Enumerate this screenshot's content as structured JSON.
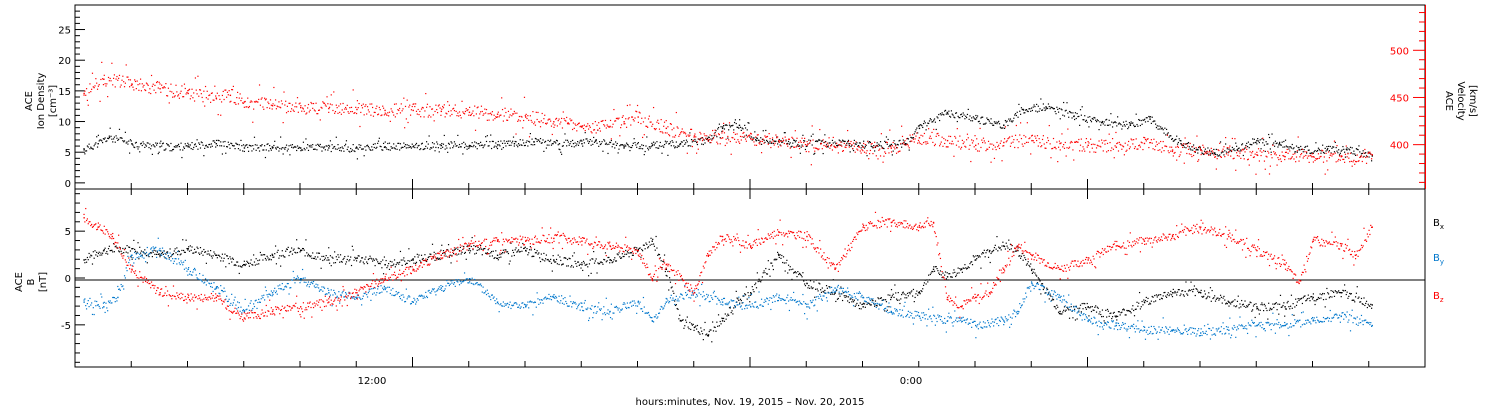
{
  "footer_label": "hours:minutes, Nov. 19, 2015 – Nov. 20, 2015",
  "x_ticks": [
    "12:00",
    "0:00"
  ],
  "colors": {
    "black": "#000000",
    "red": "#ff0000",
    "blue": "#0077cc"
  },
  "chart_data": [
    {
      "type": "scatter",
      "panel": "top",
      "ylabel_left": [
        "ACE",
        "Ion Density",
        "[cm⁻³]"
      ],
      "ylabel_right": [
        "ACE",
        "Velocity",
        "[km/s]"
      ],
      "y_ticks_left": [
        "0",
        "5",
        "10",
        "15",
        "20",
        "25"
      ],
      "y_ticks_right": [
        "400",
        "450",
        "500"
      ],
      "ylim_left": [
        -1,
        29
      ],
      "ylim_right": [
        353,
        548
      ],
      "xlim_hours": [
        0,
        48
      ],
      "grid": false,
      "series": [
        {
          "axis": "left",
          "color": "#000000",
          "points": [
            [
              0.3,
              5.5
            ],
            [
              0.8,
              6.5
            ],
            [
              1.2,
              7.5
            ],
            [
              2,
              6.5
            ],
            [
              3,
              6.0
            ],
            [
              4,
              6.0
            ],
            [
              5,
              6.5
            ],
            [
              6,
              5.8
            ],
            [
              7,
              5.8
            ],
            [
              8,
              5.8
            ],
            [
              9,
              5.8
            ],
            [
              10,
              5.8
            ],
            [
              11,
              6.0
            ],
            [
              12,
              6.0
            ],
            [
              13,
              6.2
            ],
            [
              14,
              6.2
            ],
            [
              15,
              6.3
            ],
            [
              15.6,
              6.5
            ],
            [
              16.3,
              6.8
            ],
            [
              17.2,
              6.5
            ],
            [
              18,
              6.5
            ],
            [
              18.5,
              7.0
            ],
            [
              19.5,
              6.0
            ],
            [
              20.5,
              6.2
            ],
            [
              21.5,
              6.5
            ],
            [
              22.5,
              7.0
            ],
            [
              23,
              9.0
            ],
            [
              23.6,
              9.5
            ],
            [
              24.2,
              7.0
            ],
            [
              25.3,
              6.5
            ],
            [
              26.5,
              6.5
            ],
            [
              27.5,
              6.5
            ],
            [
              28.5,
              6.2
            ],
            [
              29.5,
              6.5
            ],
            [
              30,
              9.0
            ],
            [
              31,
              11.5
            ],
            [
              32,
              10.5
            ],
            [
              33,
              9.5
            ],
            [
              33.7,
              12.0
            ],
            [
              34.5,
              12.5
            ],
            [
              35.5,
              11.0
            ],
            [
              36.5,
              10.0
            ],
            [
              37.5,
              9.5
            ],
            [
              38.2,
              10.5
            ],
            [
              39.3,
              6.5
            ],
            [
              39.9,
              5.5
            ],
            [
              40.5,
              5.0
            ],
            [
              41.3,
              5.5
            ],
            [
              42,
              7.0
            ],
            [
              42.8,
              6.5
            ],
            [
              43.5,
              5.5
            ],
            [
              44.5,
              5.5
            ],
            [
              45.2,
              5.5
            ],
            [
              46.1,
              4.5
            ]
          ]
        },
        {
          "axis": "right",
          "color": "#ff0000",
          "points": [
            [
              0.3,
              455
            ],
            [
              1,
              470
            ],
            [
              2,
              465
            ],
            [
              3,
              460
            ],
            [
              4,
              455
            ],
            [
              5,
              450
            ],
            [
              5.5,
              453
            ],
            [
              6,
              446
            ],
            [
              7,
              442
            ],
            [
              8,
              440
            ],
            [
              9,
              439
            ],
            [
              10,
              438
            ],
            [
              11,
              437
            ],
            [
              12,
              437
            ],
            [
              13,
              436
            ],
            [
              14,
              435
            ],
            [
              15,
              433
            ],
            [
              16,
              430
            ],
            [
              17,
              425
            ],
            [
              17.5,
              423
            ],
            [
              18,
              420
            ],
            [
              19,
              420
            ],
            [
              19.5,
              425
            ],
            [
              20,
              430
            ],
            [
              21,
              418
            ],
            [
              22,
              410
            ],
            [
              23,
              408
            ],
            [
              24,
              407
            ],
            [
              25,
              405
            ],
            [
              26,
              400
            ],
            [
              27,
              398
            ],
            [
              28,
              398
            ],
            [
              29,
              397
            ],
            [
              30,
              408
            ],
            [
              31,
              405
            ],
            [
              32,
              400
            ],
            [
              33,
              403
            ],
            [
              34,
              405
            ],
            [
              35,
              402
            ],
            [
              36,
              400
            ],
            [
              37,
              398
            ],
            [
              38,
              402
            ],
            [
              39,
              395
            ],
            [
              40,
              395
            ],
            [
              41,
              393
            ],
            [
              42,
              390
            ],
            [
              43,
              388
            ],
            [
              44,
              388
            ],
            [
              45,
              388
            ],
            [
              46.1,
              390
            ]
          ]
        }
      ]
    },
    {
      "type": "scatter",
      "panel": "bottom",
      "ylabel_left": [
        "ACE",
        "B",
        "[nT]"
      ],
      "y_ticks_left": [
        "-5",
        "0",
        "5"
      ],
      "ylim_left": [
        -9.5,
        9.5
      ],
      "xlim_hours": [
        0,
        48
      ],
      "reference_line": 0,
      "legend": [
        "B",
        "B",
        "B"
      ],
      "legend_subscripts": [
        "x",
        "y",
        "z"
      ],
      "legend_placement": "right",
      "grid": false,
      "series": [
        {
          "component": "Bx",
          "color": "#000000",
          "points": [
            [
              0.3,
              2.0
            ],
            [
              1,
              3.0
            ],
            [
              2,
              3.2
            ],
            [
              3,
              2.5
            ],
            [
              4,
              3.2
            ],
            [
              5,
              2.5
            ],
            [
              6,
              1.5
            ],
            [
              7,
              2.5
            ],
            [
              8,
              3.0
            ],
            [
              9,
              2.0
            ],
            [
              10,
              2.2
            ],
            [
              11,
              1.5
            ],
            [
              12,
              2.0
            ],
            [
              13,
              2.5
            ],
            [
              14,
              3.2
            ],
            [
              15,
              2.5
            ],
            [
              16,
              3.0
            ],
            [
              17,
              2.0
            ],
            [
              18,
              1.5
            ],
            [
              19,
              2.0
            ],
            [
              20,
              3.0
            ],
            [
              20.5,
              4.0
            ],
            [
              21,
              1.0
            ],
            [
              21.5,
              -4.5
            ],
            [
              22,
              -5.2
            ],
            [
              22.5,
              -6.0
            ],
            [
              23,
              -4.5
            ],
            [
              23.5,
              -2.5
            ],
            [
              24,
              -1.5
            ],
            [
              25,
              2.5
            ],
            [
              26,
              -0.5
            ],
            [
              27,
              -1.5
            ],
            [
              28,
              -3.0
            ],
            [
              29,
              -2.0
            ],
            [
              30,
              -1.5
            ],
            [
              30.5,
              1.0
            ],
            [
              31,
              0.2
            ],
            [
              31.5,
              1.0
            ],
            [
              32,
              2.0
            ],
            [
              32.5,
              3.0
            ],
            [
              33,
              3.5
            ],
            [
              33.5,
              3.0
            ],
            [
              34,
              1.0
            ],
            [
              35,
              -3.5
            ],
            [
              36,
              -3.0
            ],
            [
              37,
              -4.0
            ],
            [
              38,
              -2.5
            ],
            [
              39,
              -1.5
            ],
            [
              40,
              -1.5
            ],
            [
              41,
              -2.5
            ],
            [
              42,
              -3.0
            ],
            [
              43,
              -3.0
            ],
            [
              44,
              -2.0
            ],
            [
              45,
              -1.5
            ],
            [
              46.1,
              -2.8
            ]
          ]
        },
        {
          "component": "By",
          "color": "#0077cc",
          "points": [
            [
              0.3,
              -2.5
            ],
            [
              1,
              -3.0
            ],
            [
              1.5,
              -2.0
            ],
            [
              2,
              2.5
            ],
            [
              3,
              3.0
            ],
            [
              4,
              1.0
            ],
            [
              5,
              -1.0
            ],
            [
              6,
              -3.5
            ],
            [
              7,
              -1.5
            ],
            [
              8,
              0.0
            ],
            [
              9,
              -1.5
            ],
            [
              10,
              -2.0
            ],
            [
              11,
              -1.0
            ],
            [
              12,
              -2.5
            ],
            [
              13,
              -1.0
            ],
            [
              14,
              0.0
            ],
            [
              15,
              -2.5
            ],
            [
              16,
              -3.0
            ],
            [
              17,
              -2.0
            ],
            [
              18,
              -3.0
            ],
            [
              19,
              -3.5
            ],
            [
              20,
              -2.5
            ],
            [
              20.5,
              -4.5
            ],
            [
              21,
              -2.5
            ],
            [
              22,
              -1.5
            ],
            [
              23,
              -2.5
            ],
            [
              24,
              -3.0
            ],
            [
              25,
              -2.0
            ],
            [
              26,
              -3.0
            ],
            [
              27,
              -1.0
            ],
            [
              28,
              -2.0
            ],
            [
              29,
              -3.5
            ],
            [
              30,
              -4.0
            ],
            [
              31,
              -4.5
            ],
            [
              31.5,
              -4.2
            ],
            [
              32,
              -5.0
            ],
            [
              33,
              -4.5
            ],
            [
              33.5,
              -3.5
            ],
            [
              34,
              -0.5
            ],
            [
              35,
              -2.0
            ],
            [
              36,
              -4.5
            ],
            [
              37,
              -5.0
            ],
            [
              38,
              -5.5
            ],
            [
              39,
              -5.5
            ],
            [
              40,
              -5.8
            ],
            [
              41,
              -5.5
            ],
            [
              42,
              -5.0
            ],
            [
              43,
              -5.0
            ],
            [
              44,
              -4.5
            ],
            [
              45,
              -4.0
            ],
            [
              46.1,
              -5.0
            ]
          ]
        },
        {
          "component": "Bz",
          "color": "#ff0000",
          "points": [
            [
              0.3,
              6.5
            ],
            [
              0.8,
              5.5
            ],
            [
              1.3,
              4.5
            ],
            [
              2,
              1.0
            ],
            [
              3,
              -1.5
            ],
            [
              4,
              -2.0
            ],
            [
              5,
              -2.0
            ],
            [
              6,
              -4.2
            ],
            [
              7,
              -3.5
            ],
            [
              8,
              -3.0
            ],
            [
              9,
              -2.5
            ],
            [
              10,
              -1.5
            ],
            [
              11,
              0.0
            ],
            [
              12,
              1.0
            ],
            [
              13,
              2.5
            ],
            [
              14,
              3.5
            ],
            [
              15,
              4.0
            ],
            [
              16,
              4.0
            ],
            [
              17,
              4.3
            ],
            [
              18,
              4.0
            ],
            [
              19,
              3.5
            ],
            [
              20,
              3.0
            ],
            [
              20.5,
              0.0
            ],
            [
              21,
              1.5
            ],
            [
              22,
              -1.5
            ],
            [
              22.5,
              2.5
            ],
            [
              23,
              4.5
            ],
            [
              24,
              3.5
            ],
            [
              25,
              5.0
            ],
            [
              26,
              4.5
            ],
            [
              27,
              1.0
            ],
            [
              28,
              5.5
            ],
            [
              29,
              6.0
            ],
            [
              30,
              5.5
            ],
            [
              30.5,
              6.0
            ],
            [
              31,
              -2.0
            ],
            [
              31.5,
              -3.0
            ],
            [
              32,
              -2.0
            ],
            [
              32.5,
              -1.5
            ],
            [
              33,
              1.0
            ],
            [
              33.5,
              3.5
            ],
            [
              34,
              2.5
            ],
            [
              35,
              1.0
            ],
            [
              36,
              2.0
            ],
            [
              37,
              3.5
            ],
            [
              38,
              4.0
            ],
            [
              39,
              4.5
            ],
            [
              40,
              5.5
            ],
            [
              41,
              4.5
            ],
            [
              42,
              3.0
            ],
            [
              43,
              1.5
            ],
            [
              43.5,
              -0.5
            ],
            [
              44,
              4.0
            ],
            [
              45,
              3.5
            ],
            [
              45.5,
              2.5
            ],
            [
              46.1,
              5.5
            ]
          ]
        }
      ]
    }
  ]
}
